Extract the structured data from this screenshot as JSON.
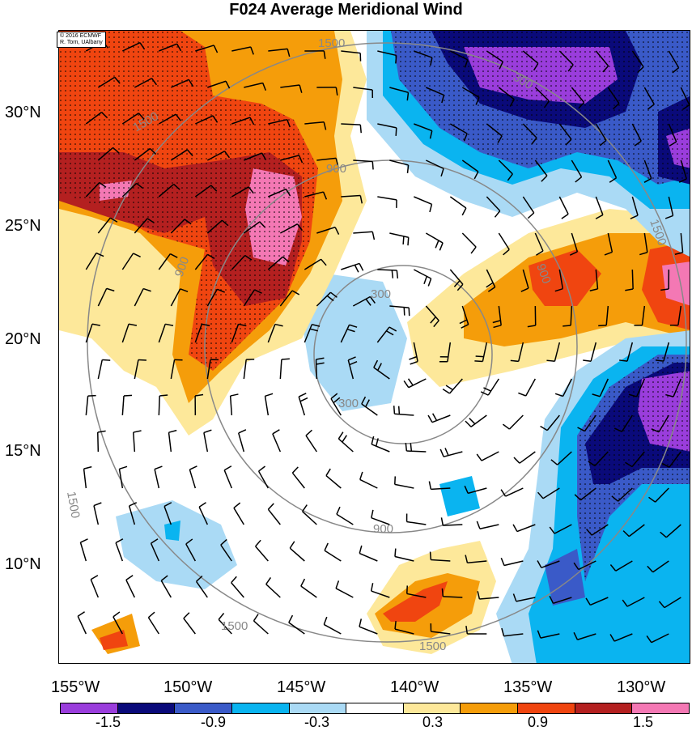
{
  "title": "F024 Average Meridional Wind",
  "credit": {
    "line1": "© 2016 ECMWF",
    "line2": "R. Torn, UAlbany"
  },
  "lat_labels": [
    "30°N",
    "25°N",
    "20°N",
    "15°N",
    "10°N"
  ],
  "lon_labels": [
    "155°W",
    "150°W",
    "145°W",
    "140°W",
    "135°W",
    "130°W"
  ],
  "contour_labels": [
    "300",
    "300",
    "900",
    "900",
    "900",
    "900",
    "1500",
    "1500",
    "1500",
    "1500",
    "1500",
    "1500"
  ],
  "colorbar": {
    "colors": [
      "#9a3ddc",
      "#0a0a7a",
      "#3a5ac8",
      "#0ab4f0",
      "#aadaf5",
      "#ffffff",
      "#fde89a",
      "#f59d0a",
      "#f04510",
      "#b42020",
      "#f478b4"
    ],
    "labels": [
      "-1.5",
      "-0.9",
      "-0.3",
      "0.3",
      "0.9",
      "1.5"
    ]
  }
}
